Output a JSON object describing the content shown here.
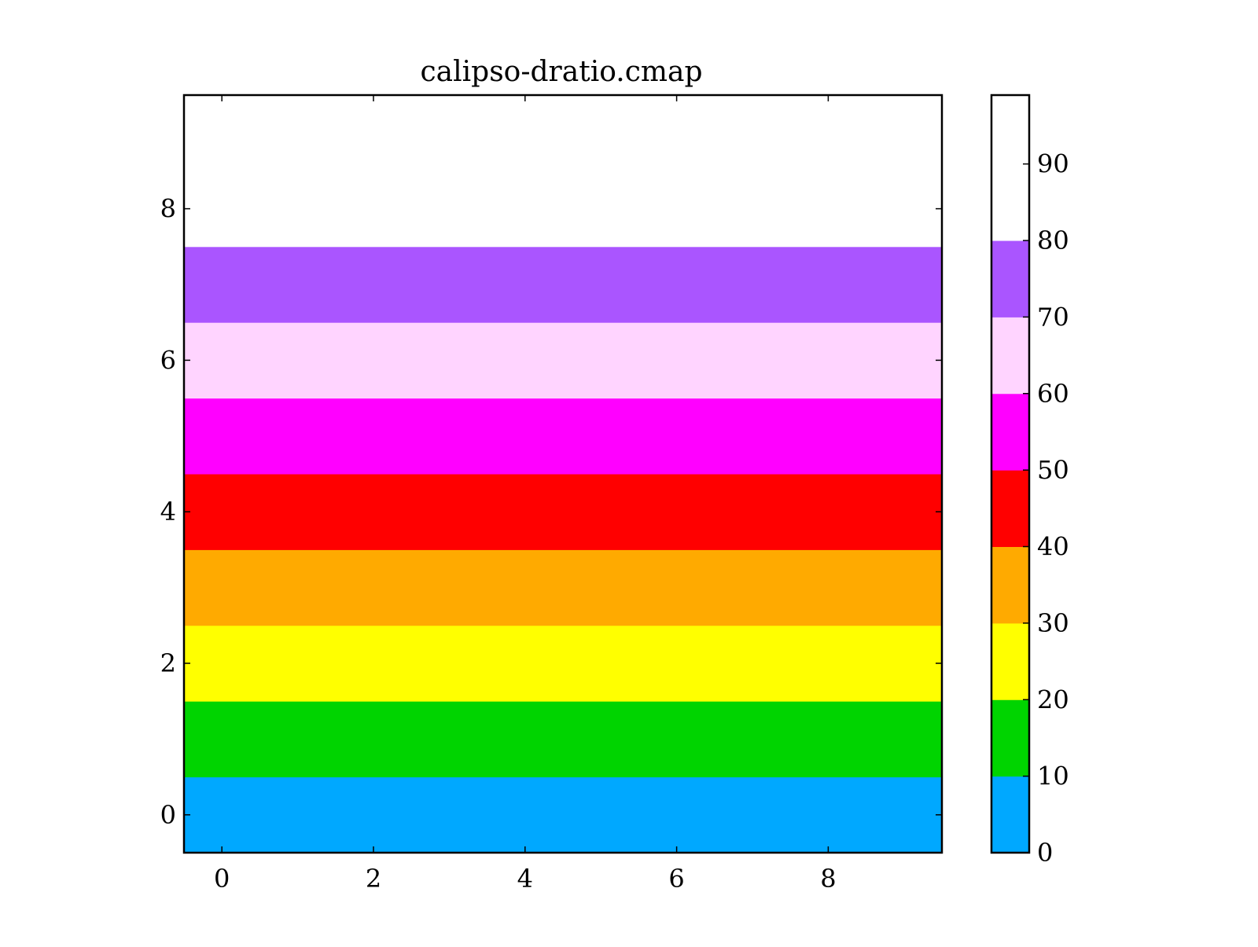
{
  "chart_data": {
    "type": "heatmap",
    "title": "calipso-dratio.cmap",
    "xlabel": "",
    "ylabel": "",
    "grid": false,
    "x": [
      0,
      1,
      2,
      3,
      4,
      5,
      6,
      7,
      8,
      9
    ],
    "y": [
      0,
      1,
      2,
      3,
      4,
      5,
      6,
      7,
      8,
      9
    ],
    "xlim": [
      -0.5,
      9.5
    ],
    "ylim": [
      -0.5,
      9.5
    ],
    "x_ticks": [
      0,
      2,
      4,
      6,
      8
    ],
    "y_ticks": [
      0,
      2,
      4,
      6,
      8
    ],
    "row_values": [
      5,
      15,
      25,
      35,
      45,
      55,
      65,
      75,
      85,
      95
    ],
    "colorbar": {
      "range": [
        0,
        99
      ],
      "ticks": [
        0,
        10,
        20,
        30,
        40,
        50,
        60,
        70,
        80,
        90
      ],
      "levels": [
        {
          "from": 0,
          "to": 10,
          "color": "#00a8ff"
        },
        {
          "from": 10,
          "to": 20,
          "color": "#00d400"
        },
        {
          "from": 20,
          "to": 30,
          "color": "#ffff00"
        },
        {
          "from": 30,
          "to": 40,
          "color": "#ffaa00"
        },
        {
          "from": 40,
          "to": 50,
          "color": "#ff0000"
        },
        {
          "from": 50,
          "to": 60,
          "color": "#ff00ff"
        },
        {
          "from": 60,
          "to": 70,
          "color": "#ffd4ff"
        },
        {
          "from": 70,
          "to": 80,
          "color": "#aa55ff"
        },
        {
          "from": 80,
          "to": 99,
          "color": "#ffffff"
        }
      ]
    }
  }
}
